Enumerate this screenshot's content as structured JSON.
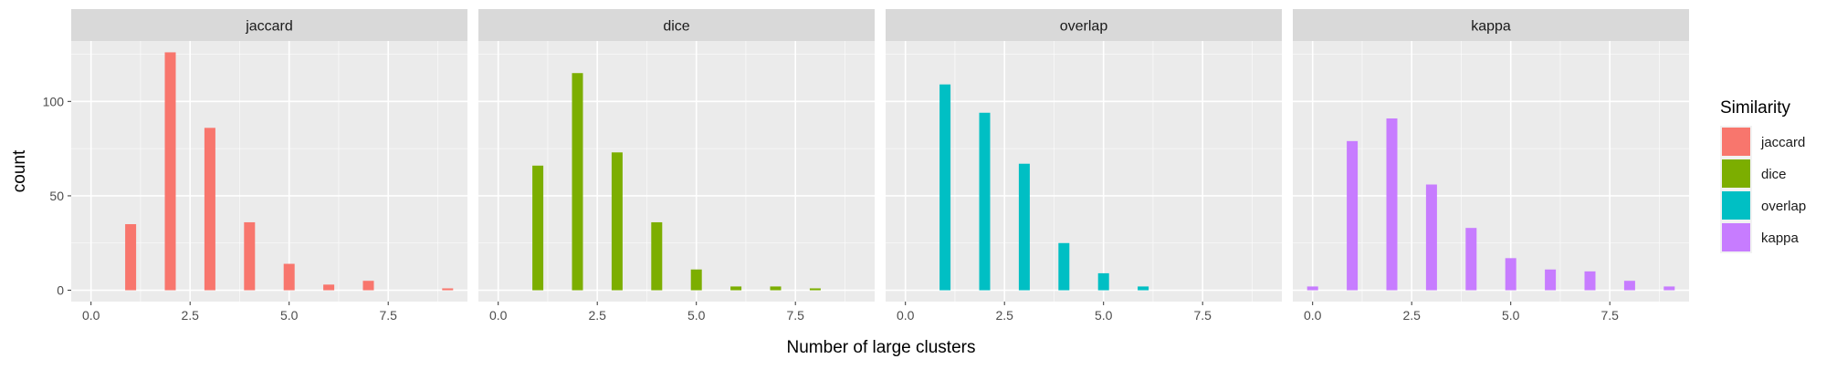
{
  "colors": {
    "jaccard": "#F8766D",
    "dice": "#7CAE00",
    "overlap": "#00BFC4",
    "kappa": "#C77CFF",
    "panel_bg": "#EBEBEB",
    "strip_bg": "#D9D9D9",
    "grid": "#FFFFFF",
    "axis_text": "#4D4D4D"
  },
  "chart_data": {
    "type": "bar",
    "layout": "facet-wrap",
    "xlabel": "Number of large clusters",
    "ylabel": "count",
    "xlim": [
      -0.5,
      9.5
    ],
    "ylim": [
      -6,
      132
    ],
    "x_ticks": [
      0,
      2.5,
      5,
      7.5
    ],
    "x_tick_labels": [
      "0.0",
      "2.5",
      "5.0",
      "7.5"
    ],
    "y_ticks": [
      0,
      50,
      100
    ],
    "y_tick_labels": [
      "0",
      "50",
      "100"
    ],
    "grid": true,
    "legend": {
      "title": "Similarity",
      "position": "right",
      "entries": [
        "jaccard",
        "dice",
        "overlap",
        "kappa"
      ]
    },
    "panels": [
      {
        "name": "jaccard",
        "x": [
          1,
          2,
          3,
          4,
          5,
          6,
          7,
          9
        ],
        "values": [
          35,
          126,
          86,
          36,
          14,
          3,
          5,
          1
        ]
      },
      {
        "name": "dice",
        "x": [
          1,
          2,
          3,
          4,
          5,
          6,
          7,
          8
        ],
        "values": [
          66,
          115,
          73,
          36,
          11,
          2,
          2,
          1
        ]
      },
      {
        "name": "overlap",
        "x": [
          1,
          2,
          3,
          4,
          5,
          6
        ],
        "values": [
          109,
          94,
          67,
          25,
          9,
          2
        ]
      },
      {
        "name": "kappa",
        "x": [
          0,
          1,
          2,
          3,
          4,
          5,
          6,
          7,
          8,
          9
        ],
        "values": [
          2,
          79,
          91,
          56,
          33,
          17,
          11,
          10,
          5,
          2
        ]
      }
    ]
  }
}
